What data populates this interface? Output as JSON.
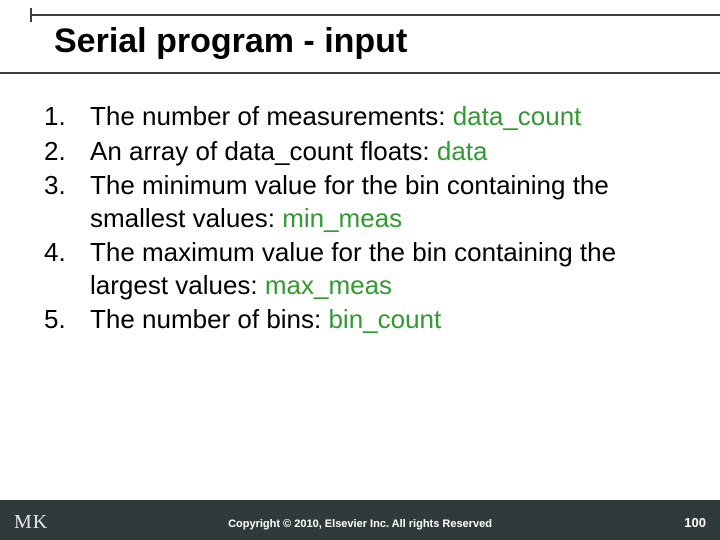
{
  "title": "Serial program - input",
  "items": [
    {
      "pre": "The number of measurements: ",
      "kw": "data_count",
      "post": ""
    },
    {
      "pre": "An array of data_count floats: ",
      "kw": "data",
      "post": ""
    },
    {
      "pre": "The minimum value for the bin containing the smallest values: ",
      "kw": "min_meas",
      "post": ""
    },
    {
      "pre": "The maximum value for the bin containing the largest values: ",
      "kw": "max_meas",
      "post": ""
    },
    {
      "pre": "The number of bins: ",
      "kw": "bin_count",
      "post": ""
    }
  ],
  "logo": "MK",
  "copyright": "Copyright © 2010, Elsevier Inc. All rights Reserved",
  "page": "100",
  "colors": {
    "keyword": "#339933",
    "footer_bg": "#2f3a3a",
    "rule": "#404040",
    "text": "#000000"
  },
  "fontsize": {
    "title": 34,
    "body": 26,
    "copyright": 11,
    "page": 13
  }
}
